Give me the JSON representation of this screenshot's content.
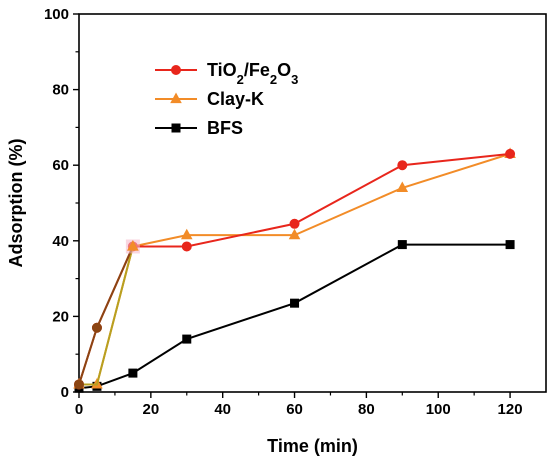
{
  "chart_data": {
    "type": "line",
    "xlabel": "Time (min)",
    "ylabel": "Adsorption (%)",
    "xlim": [
      0,
      130
    ],
    "ylim": [
      0,
      100
    ],
    "xticks": [
      0,
      20,
      40,
      60,
      80,
      100,
      120
    ],
    "yticks": [
      0,
      20,
      40,
      60,
      80,
      100
    ],
    "legend_position": "top-left",
    "grid": false,
    "series": [
      {
        "name": "TiO2/Fe2O3",
        "name_parts": [
          [
            "TiO",
            ""
          ],
          [
            "2",
            "sub"
          ],
          [
            "/Fe",
            ""
          ],
          [
            "2",
            "sub"
          ],
          [
            "O",
            ""
          ],
          [
            "3",
            "sub"
          ]
        ],
        "color": "#e8261c",
        "marker": "circle",
        "x": [
          0,
          5,
          15,
          30,
          60,
          90,
          120
        ],
        "y": [
          2,
          17,
          38.5,
          38.5,
          44.5,
          60,
          63
        ]
      },
      {
        "name": "Clay-K",
        "color": "#f28c28",
        "marker": "triangle",
        "x": [
          0,
          5,
          15,
          30,
          60,
          90,
          120
        ],
        "y": [
          2,
          2,
          38.5,
          41.5,
          41.5,
          54,
          63
        ]
      },
      {
        "name": "BFS",
        "color": "#000000",
        "marker": "square",
        "x": [
          0,
          5,
          15,
          30,
          60,
          90,
          120
        ],
        "y": [
          1,
          1.5,
          5,
          14,
          23.5,
          39,
          39
        ]
      }
    ],
    "overlay": {
      "color": "#8b4513",
      "x": [
        0,
        5,
        15
      ],
      "y": [
        2,
        17,
        38.5
      ]
    },
    "overlay_2": {
      "color": "#b8a020",
      "x": [
        0,
        5,
        15
      ],
      "y": [
        2,
        2,
        38.5
      ]
    }
  }
}
